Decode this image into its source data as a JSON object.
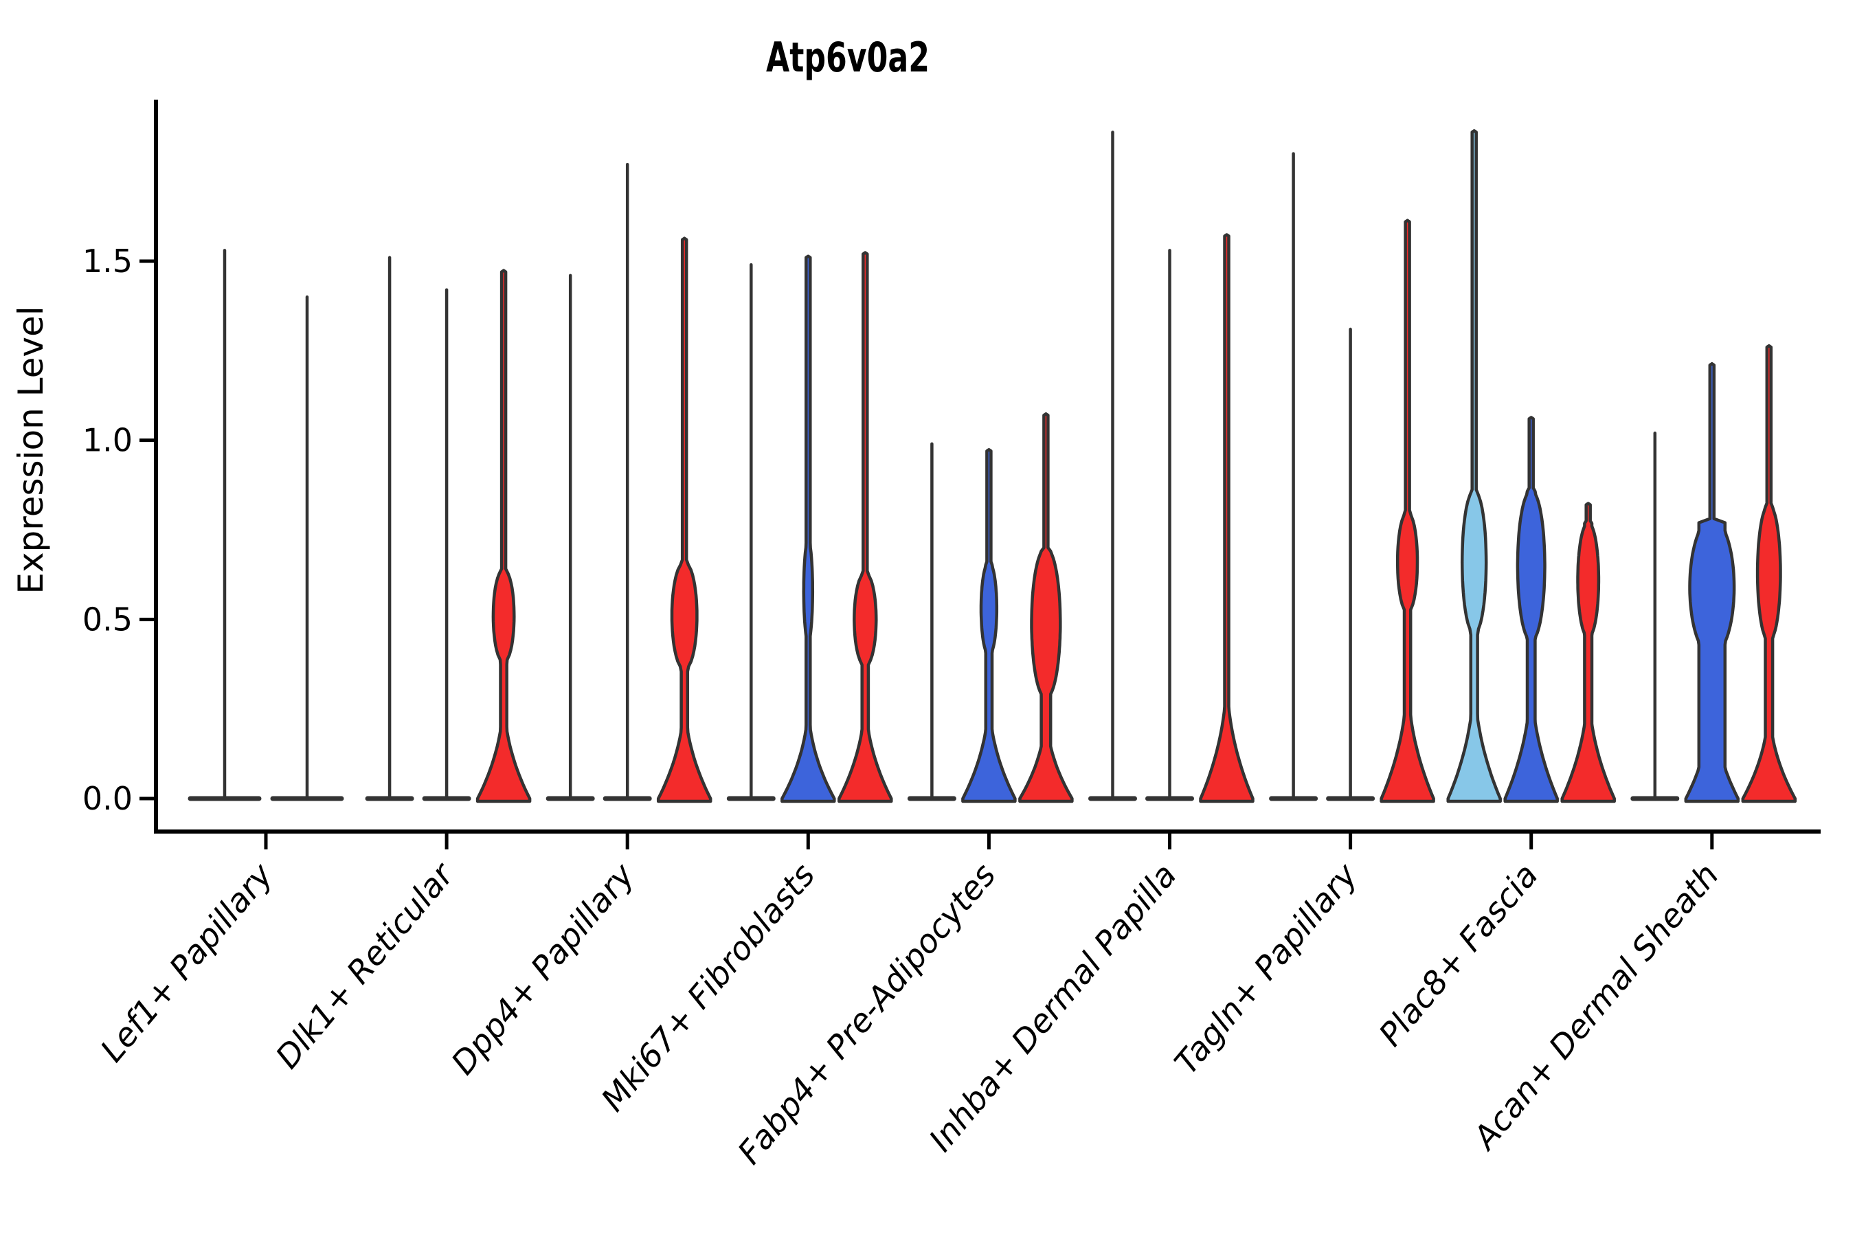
{
  "title": "Atp6v0a2",
  "y_axis": {
    "label": "Expression Level",
    "tick_labels": [
      "0.0",
      "0.5",
      "1.0",
      "1.5"
    ],
    "tick_values": [
      0.0,
      0.5,
      1.0,
      1.5
    ]
  },
  "palette": {
    "light_blue": "#87c7e8",
    "blue": "#3d64db",
    "red": "#f32b2b",
    "outline": "#333333",
    "axis": "#000000"
  },
  "chart_data": {
    "type": "violin",
    "title": "Atp6v0a2",
    "xlabel": "",
    "ylabel": "Expression Level",
    "ylim": [
      0,
      1.95
    ],
    "yticks": [
      0.0,
      0.5,
      1.0,
      1.5
    ],
    "grid": false,
    "legend": false,
    "x_tick_rotation_deg": 50,
    "categories": [
      "Lef1+ Papillary",
      "Dlk1+ Reticular",
      "Dpp4+ Papillary",
      "Mki67+ Fibroblasts",
      "Fabp4+ Pre-Adipocytes",
      "Inhba+ Dermal Papilla",
      "Tagln+ Papillary",
      "Plac8+ Fascia",
      "Acan+ Dermal Sheath"
    ],
    "note": "Each category holds side-by-side split violins; violins with fill null collapse to a thin spike (near-all-zero expression) with a flat wide base at 0. max = top of violin tail (expression units); bulge = [low,high] extent of the density bulge; bulge_width and waist are fractions of the violin max half-width.",
    "groups": [
      {
        "category": "Lef1+ Papillary",
        "violins": [
          {
            "fill": null,
            "max": 1.53
          },
          {
            "fill": null,
            "max": 1.4
          }
        ]
      },
      {
        "category": "Dlk1+ Reticular",
        "violins": [
          {
            "fill": null,
            "max": 1.51
          },
          {
            "fill": null,
            "max": 1.42
          },
          {
            "fill": "red",
            "max": 1.47,
            "base_top": 0.3,
            "bulge": [
              0.38,
              0.64
            ],
            "bulge_width": 0.4,
            "waist": 0.12
          }
        ]
      },
      {
        "category": "Dpp4+ Papillary",
        "violins": [
          {
            "fill": null,
            "max": 1.46
          },
          {
            "fill": null,
            "max": 1.77
          },
          {
            "fill": "red",
            "max": 1.56,
            "base_top": 0.3,
            "bulge": [
              0.36,
              0.66
            ],
            "bulge_width": 0.48,
            "waist": 0.12
          }
        ]
      },
      {
        "category": "Mki67+ Fibroblasts",
        "violins": [
          {
            "fill": null,
            "max": 1.49
          },
          {
            "fill": "blue",
            "max": 1.51,
            "base_top": 0.28,
            "bulge": [
              0.44,
              0.72
            ],
            "bulge_width": 0.17,
            "waist": 0.08
          },
          {
            "fill": "red",
            "max": 1.52,
            "base_top": 0.3,
            "bulge": [
              0.37,
              0.63
            ],
            "bulge_width": 0.42,
            "waist": 0.12
          }
        ]
      },
      {
        "category": "Fabp4+ Pre-Adipocytes",
        "violins": [
          {
            "fill": null,
            "max": 0.99
          },
          {
            "fill": "blue",
            "max": 0.97,
            "base_top": 0.3,
            "bulge": [
              0.4,
              0.66
            ],
            "bulge_width": 0.3,
            "waist": 0.12
          },
          {
            "fill": "red",
            "max": 1.07,
            "base_top": 0.26,
            "bulge": [
              0.28,
              0.7
            ],
            "bulge_width": 0.55,
            "waist": 0.18
          }
        ]
      },
      {
        "category": "Inhba+ Dermal Papilla",
        "violins": [
          {
            "fill": null,
            "max": 1.86
          },
          {
            "fill": null,
            "max": 1.53
          },
          {
            "fill": "red",
            "max": 1.57,
            "base_top": 0.36
          }
        ]
      },
      {
        "category": "Tagln+ Papillary",
        "violins": [
          {
            "fill": null,
            "max": 1.8
          },
          {
            "fill": null,
            "max": 1.31
          },
          {
            "fill": "red",
            "max": 1.61,
            "base_top": 0.36,
            "bulge": [
              0.52,
              0.8
            ],
            "bulge_width": 0.38,
            "waist": 0.12
          }
        ]
      },
      {
        "category": "Plac8+ Fascia",
        "violins": [
          {
            "fill": "light_blue",
            "max": 1.86,
            "base_top": 0.36,
            "bulge": [
              0.46,
              0.86
            ],
            "bulge_width": 0.46,
            "waist": 0.13
          },
          {
            "fill": "blue",
            "max": 1.06,
            "base_top": 0.36,
            "bulge": [
              0.44,
              0.86
            ],
            "bulge_width": 0.52,
            "waist": 0.15
          },
          {
            "fill": "red",
            "max": 0.82,
            "base_top": 0.34,
            "bulge": [
              0.45,
              0.77
            ],
            "bulge_width": 0.4,
            "waist": 0.14
          }
        ]
      },
      {
        "category": "Acan+ Dermal Sheath",
        "violins": [
          {
            "fill": null,
            "max": 1.02
          },
          {
            "fill": "blue",
            "max": 1.21,
            "base_top": 0.3,
            "bulge": [
              0.4,
              0.78
            ],
            "bulge_width": 0.85,
            "waist": 0.5
          },
          {
            "fill": "red",
            "max": 1.26,
            "base_top": 0.28,
            "bulge": [
              0.44,
              0.82
            ],
            "bulge_width": 0.44,
            "waist": 0.14
          }
        ]
      }
    ]
  }
}
